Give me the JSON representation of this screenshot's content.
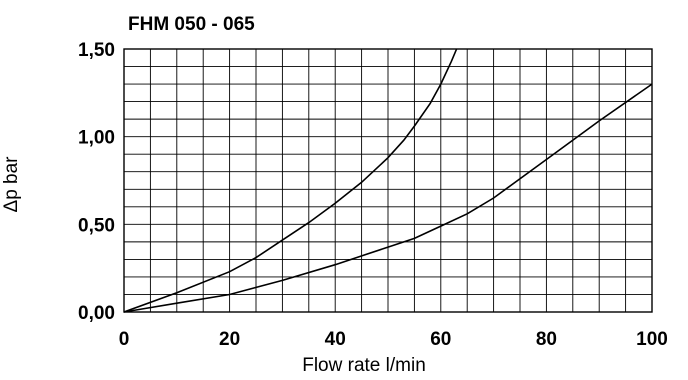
{
  "chart_data": {
    "type": "line",
    "title": "FHM 050 - 065",
    "xlabel": "Flow rate l/min",
    "ylabel": "Δp bar",
    "xlim": [
      0,
      100
    ],
    "ylim": [
      0,
      1.5
    ],
    "x_ticks": [
      "0",
      "20",
      "40",
      "60",
      "80",
      "100"
    ],
    "y_ticks": [
      "0,00",
      "0,50",
      "1,00",
      "1,50"
    ],
    "grid": true,
    "series": [
      {
        "x": [
          0,
          10,
          20,
          25,
          30,
          35,
          40,
          45,
          50,
          53,
          55,
          58,
          60,
          62,
          63
        ],
        "y": [
          0,
          0.11,
          0.23,
          0.31,
          0.41,
          0.51,
          0.62,
          0.74,
          0.88,
          0.98,
          1.06,
          1.19,
          1.3,
          1.43,
          1.5
        ]
      },
      {
        "x": [
          0,
          10,
          20,
          30,
          40,
          50,
          55,
          60,
          65,
          70,
          80,
          90,
          100
        ],
        "y": [
          0,
          0.05,
          0.1,
          0.18,
          0.27,
          0.37,
          0.42,
          0.49,
          0.56,
          0.65,
          0.87,
          1.09,
          1.3
        ]
      }
    ]
  }
}
